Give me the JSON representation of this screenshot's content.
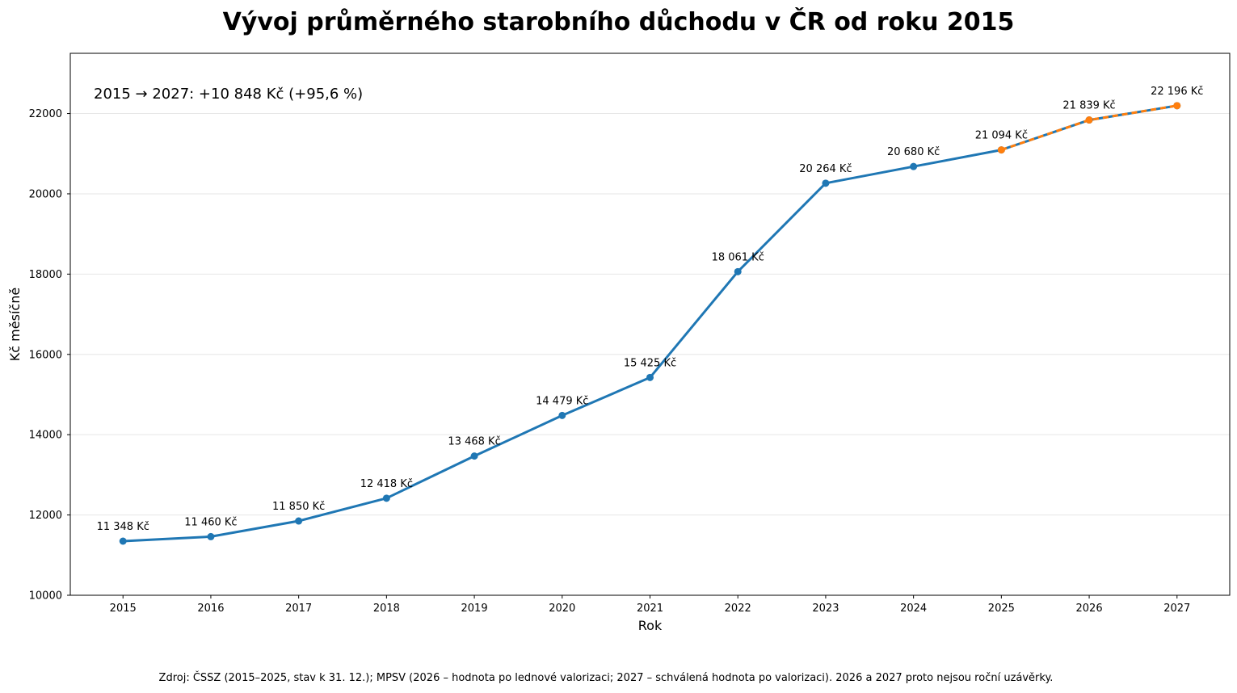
{
  "chart_data": {
    "type": "line",
    "title": "Vývoj průměrného starobního důchodu v ČR od roku 2015",
    "xlabel": "Rok",
    "ylabel": "Kč měsíčně",
    "x": [
      2015,
      2016,
      2017,
      2018,
      2019,
      2020,
      2021,
      2022,
      2023,
      2024,
      2025,
      2026,
      2027
    ],
    "xlim": [
      2014.4,
      2027.6
    ],
    "ylim": [
      10000,
      23500
    ],
    "yticks": [
      10000,
      12000,
      14000,
      16000,
      18000,
      20000,
      22000
    ],
    "grid": "horizontal",
    "series": [
      {
        "values": [
          11348,
          11460,
          11850,
          12418,
          13468,
          14479,
          15425,
          18061,
          20264,
          20680,
          21094,
          21839,
          22196
        ],
        "color": "#1f77b4",
        "style": "solid"
      },
      {
        "x": [
          2025,
          2026,
          2027
        ],
        "values": [
          21094,
          21839,
          22196
        ],
        "color": "#ff7f0e",
        "style": "dashed"
      }
    ],
    "data_labels": [
      "11 348 Kč",
      "11 460 Kč",
      "11 850 Kč",
      "12 418 Kč",
      "13 468 Kč",
      "14 479 Kč",
      "15 425 Kč",
      "18 061 Kč",
      "20 264 Kč",
      "20 680 Kč",
      "21 094 Kč",
      "21 839 Kč",
      "22 196 Kč"
    ],
    "annotation": "2015 → 2027: +10 848 Kč  (+95,6 %)",
    "source": "Zdroj: ČSSZ (2015–2025, stav k 31. 12.); MPSV (2026 – hodnota po lednové valorizaci; 2027 – schválená hodnota po valorizaci). 2026 a 2027 proto nejsou roční uzávěrky."
  }
}
